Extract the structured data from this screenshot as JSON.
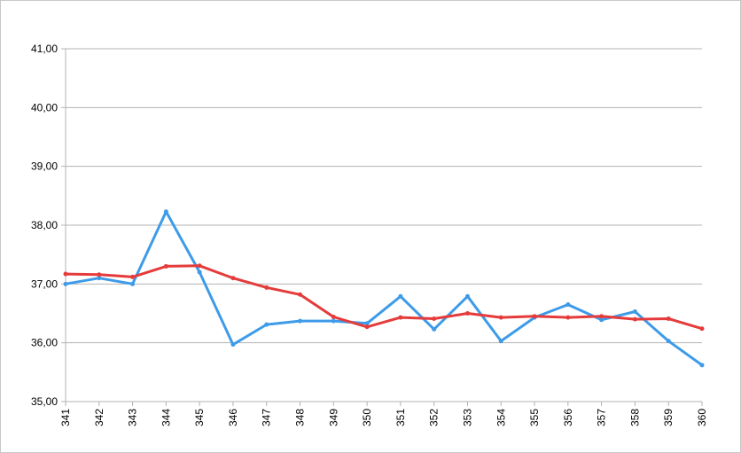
{
  "chart_data": {
    "type": "line",
    "categories": [
      "341",
      "342",
      "343",
      "344",
      "345",
      "346",
      "347",
      "348",
      "349",
      "350",
      "351",
      "352",
      "353",
      "354",
      "355",
      "356",
      "357",
      "358",
      "359",
      "360"
    ],
    "series": [
      {
        "color": "#3d9be9",
        "values": [
          37.0,
          37.1,
          37.0,
          38.23,
          37.2,
          35.97,
          36.31,
          36.37,
          36.37,
          36.33,
          36.79,
          36.23,
          36.79,
          36.03,
          36.43,
          36.65,
          36.39,
          36.53,
          36.03,
          35.62
        ]
      },
      {
        "color": "#e53b3b",
        "values": [
          37.17,
          37.16,
          37.12,
          37.3,
          37.31,
          37.1,
          36.94,
          36.82,
          36.44,
          36.27,
          36.43,
          36.41,
          36.5,
          36.43,
          36.45,
          36.43,
          36.45,
          36.4,
          36.41,
          36.24
        ]
      }
    ],
    "ylim": [
      35,
      41
    ],
    "y_ticks": [
      "35,00",
      "36,00",
      "37,00",
      "38,00",
      "39,00",
      "40,00",
      "41,00"
    ],
    "grid": true,
    "legend": "none"
  }
}
